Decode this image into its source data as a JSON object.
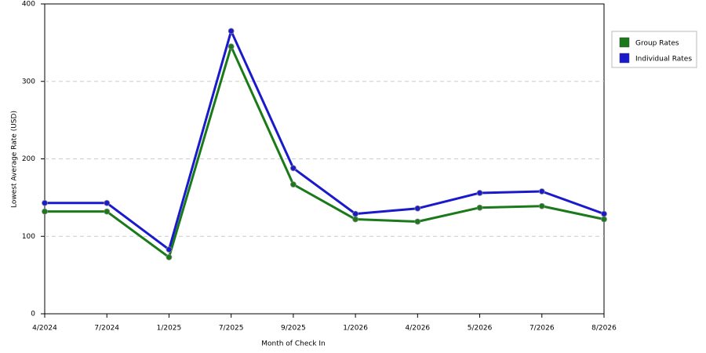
{
  "chart_data": {
    "type": "line",
    "x_label": "Month of Check In",
    "y_label": "Lowest Average Rate (USD)",
    "categories": [
      "4/2024",
      "7/2024",
      "1/2025",
      "7/2025",
      "9/2025",
      "1/2026",
      "4/2026",
      "5/2026",
      "7/2026",
      "8/2026"
    ],
    "series": [
      {
        "name": "Group Rates",
        "color": "#1a7a1a",
        "values": [
          132,
          132,
          73,
          345,
          167,
          122,
          119,
          137,
          139,
          122
        ]
      },
      {
        "name": "Individual Rates",
        "color": "#1a1acc",
        "values": [
          143,
          143,
          83,
          365,
          188,
          129,
          136,
          156,
          158,
          129
        ]
      }
    ],
    "ylim": [
      0,
      400
    ],
    "yticks": [
      0,
      100,
      200,
      300,
      400
    ],
    "grid": true,
    "legend": "right"
  }
}
